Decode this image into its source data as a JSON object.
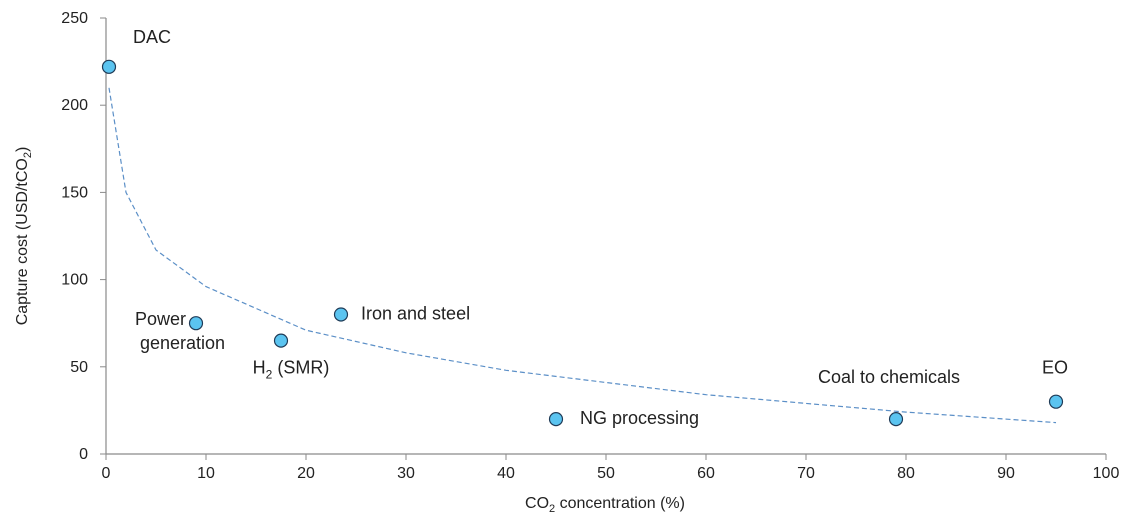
{
  "chart_data": {
    "type": "scatter",
    "title": "",
    "xlabel": {
      "pre": "CO",
      "sub": "2",
      "post": " concentration (%)"
    },
    "ylabel": {
      "pre": "Capture cost (USD/tCO",
      "sub": "2",
      "post": ")"
    },
    "xlim": [
      0,
      100
    ],
    "ylim": [
      0,
      250
    ],
    "xticks": [
      0,
      10,
      20,
      30,
      40,
      50,
      60,
      70,
      80,
      90,
      100
    ],
    "yticks": [
      0,
      50,
      100,
      150,
      200,
      250
    ],
    "grid": false,
    "legend": "none",
    "marker_color": "#5bc4f0",
    "marker_edge": "#1f3b57",
    "trend_color": "#5b8fc7",
    "points": [
      {
        "label": "DAC",
        "x": 0.3,
        "y": 222
      },
      {
        "label": "Power generation",
        "label_lines": [
          "Power",
          "generation"
        ],
        "x": 9,
        "y": 75
      },
      {
        "label": "H2 (SMR)",
        "label_pre": "H",
        "label_sub": "2",
        "label_post": " (SMR)",
        "x": 17.5,
        "y": 65
      },
      {
        "label": "Iron and steel",
        "x": 23.5,
        "y": 80
      },
      {
        "label": "NG processing",
        "x": 45,
        "y": 20
      },
      {
        "label": "Coal to chemicals",
        "x": 79,
        "y": 20
      },
      {
        "label": "EO",
        "x": 95,
        "y": 30
      }
    ],
    "trendline": {
      "type": "power",
      "x": [
        0.3,
        2,
        5,
        10,
        20,
        30,
        40,
        50,
        60,
        70,
        80,
        95
      ],
      "y": [
        210,
        150,
        117,
        96,
        71,
        58,
        48,
        41,
        34,
        29,
        24,
        18
      ]
    }
  }
}
